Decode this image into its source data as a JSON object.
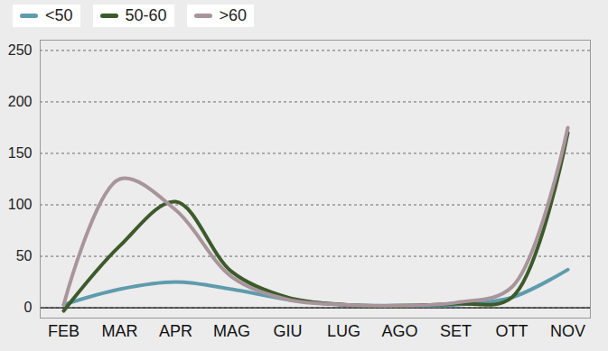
{
  "chart_data": {
    "type": "line",
    "categories": [
      "FEB",
      "MAR",
      "APR",
      "MAG",
      "GIU",
      "LUG",
      "AGO",
      "SET",
      "OTT",
      "NOV"
    ],
    "series": [
      {
        "name": "<50",
        "color": "#5e9cad",
        "values": [
          3,
          18,
          25,
          18,
          8,
          3,
          2,
          3,
          10,
          37
        ]
      },
      {
        "name": "50-60",
        "color": "#3d5a2b",
        "values": [
          -3,
          60,
          103,
          35,
          10,
          3,
          2,
          4,
          10,
          170
        ]
      },
      {
        "name": ">60",
        "color": "#a8959b",
        "values": [
          3,
          125,
          95,
          30,
          8,
          3,
          2,
          5,
          20,
          175
        ]
      }
    ],
    "ylim": [
      -10,
      260
    ],
    "yticks": [
      0,
      50,
      100,
      150,
      200,
      250
    ],
    "grid": true,
    "legend": "top-left"
  }
}
